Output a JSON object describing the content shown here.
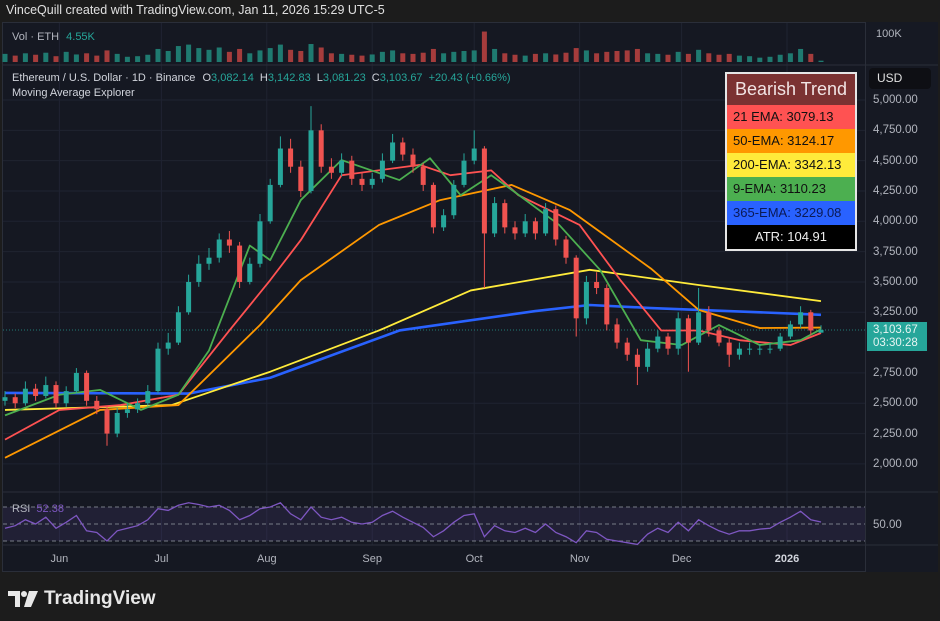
{
  "header": {
    "credit": "VinceQuill created with TradingView.com, Jan 11, 2026 15:29 UTC-5"
  },
  "volume_legend": {
    "label": "Vol · ETH",
    "value": "4.55K",
    "axis_label": "100K"
  },
  "symbol_legend": {
    "name": "Ethereum / U.S. Dollar · 1D · Binance",
    "o_label": "O",
    "o": "3,082.14",
    "h_label": "H",
    "h": "3,142.83",
    "l_label": "L",
    "l": "3,081.23",
    "c_label": "C",
    "c": "3,103.67",
    "change": "+20.43 (+0.66%)",
    "indicator": "Moving Average Explorer"
  },
  "currency_button": "USD",
  "price_tag": {
    "price": "3,103.67",
    "countdown": "03:30:28"
  },
  "trend_table": {
    "title": "Bearish Trend",
    "rows": [
      {
        "label": "21 EMA: 3079.13",
        "color": "#ff5252"
      },
      {
        "label": "50-EMA: 3124.17",
        "color": "#ff9800"
      },
      {
        "label": "200-EMA: 3342.13",
        "color": "#ffeb3b"
      },
      {
        "label": "9-EMA: 3110.23",
        "color": "#4caf50"
      },
      {
        "label": "365-EMA: 3229.08",
        "color": "#2962ff"
      },
      {
        "label": "ATR: 104.91",
        "color": "#000000"
      }
    ]
  },
  "rsi": {
    "label": "RSI",
    "value": "52.38",
    "axis_label": "50.00"
  },
  "logo": {
    "text": "TradingView"
  },
  "chart_data": {
    "type": "candlestick",
    "title": "Ethereum / U.S. Dollar · 1D · Binance",
    "ylim": [
      1850,
      5150
    ],
    "grid": true,
    "up_color": "#26a69a",
    "down_color": "#ef5350",
    "y_ticks": [
      "5,000.00",
      "4,750.00",
      "4,500.00",
      "4,250.00",
      "4,000.00",
      "3,750.00",
      "3,500.00",
      "3,250.00",
      "2,750.00",
      "2,500.00",
      "2,250.00",
      "2,000.00"
    ],
    "y_tick_values": [
      5000,
      4750,
      4500,
      4250,
      4000,
      3750,
      3500,
      3250,
      2750,
      2500,
      2250,
      2000
    ],
    "x_ticks": [
      {
        "label": "Jun",
        "date": "2025-06-01"
      },
      {
        "label": "Jul",
        "date": "2025-07-01"
      },
      {
        "label": "Aug",
        "date": "2025-08-01"
      },
      {
        "label": "Sep",
        "date": "2025-09-01"
      },
      {
        "label": "Oct",
        "date": "2025-10-01"
      },
      {
        "label": "Nov",
        "date": "2025-11-01"
      },
      {
        "label": "Dec",
        "date": "2025-12-01"
      },
      {
        "label": "2026",
        "date": "2026-01-01"
      }
    ],
    "candles_columns": [
      "date",
      "open",
      "high",
      "low",
      "close"
    ],
    "candles": [
      [
        "2025-05-16",
        2520,
        2600,
        2480,
        2550
      ],
      [
        "2025-05-19",
        2550,
        2580,
        2460,
        2500
      ],
      [
        "2025-05-22",
        2500,
        2680,
        2480,
        2620
      ],
      [
        "2025-05-25",
        2620,
        2660,
        2520,
        2560
      ],
      [
        "2025-05-28",
        2560,
        2720,
        2540,
        2650
      ],
      [
        "2025-05-31",
        2650,
        2680,
        2460,
        2500
      ],
      [
        "2025-06-03",
        2500,
        2640,
        2470,
        2600
      ],
      [
        "2025-06-06",
        2600,
        2790,
        2580,
        2750
      ],
      [
        "2025-06-09",
        2750,
        2770,
        2480,
        2520
      ],
      [
        "2025-06-12",
        2520,
        2560,
        2410,
        2450
      ],
      [
        "2025-06-15",
        2450,
        2480,
        2150,
        2250
      ],
      [
        "2025-06-18",
        2250,
        2460,
        2220,
        2420
      ],
      [
        "2025-06-21",
        2420,
        2500,
        2380,
        2450
      ],
      [
        "2025-06-24",
        2450,
        2540,
        2420,
        2500
      ],
      [
        "2025-06-27",
        2500,
        2650,
        2480,
        2600
      ],
      [
        "2025-06-30",
        2600,
        3000,
        2580,
        2950
      ],
      [
        "2025-07-03",
        2950,
        3080,
        2900,
        3000
      ],
      [
        "2025-07-06",
        3000,
        3300,
        2980,
        3250
      ],
      [
        "2025-07-09",
        3250,
        3560,
        3230,
        3500
      ],
      [
        "2025-07-12",
        3500,
        3720,
        3460,
        3650
      ],
      [
        "2025-07-15",
        3650,
        3780,
        3600,
        3700
      ],
      [
        "2025-07-18",
        3700,
        3900,
        3660,
        3850
      ],
      [
        "2025-07-21",
        3850,
        3920,
        3740,
        3800
      ],
      [
        "2025-07-24",
        3800,
        3830,
        3450,
        3500
      ],
      [
        "2025-07-27",
        3500,
        3700,
        3480,
        3650
      ],
      [
        "2025-07-30",
        3650,
        4060,
        3620,
        4000
      ],
      [
        "2025-08-02",
        4000,
        4350,
        3980,
        4300
      ],
      [
        "2025-08-05",
        4300,
        4700,
        4280,
        4600
      ],
      [
        "2025-08-08",
        4600,
        4680,
        4400,
        4450
      ],
      [
        "2025-08-11",
        4450,
        4500,
        4200,
        4250
      ],
      [
        "2025-08-14",
        4250,
        4950,
        4230,
        4750
      ],
      [
        "2025-08-17",
        4750,
        4800,
        4400,
        4450
      ],
      [
        "2025-08-20",
        4450,
        4520,
        4350,
        4400
      ],
      [
        "2025-08-23",
        4400,
        4560,
        4370,
        4500
      ],
      [
        "2025-08-26",
        4500,
        4540,
        4300,
        4350
      ],
      [
        "2025-08-29",
        4350,
        4400,
        4250,
        4300
      ],
      [
        "2025-09-01",
        4300,
        4400,
        4270,
        4350
      ],
      [
        "2025-09-04",
        4350,
        4560,
        4320,
        4500
      ],
      [
        "2025-09-07",
        4500,
        4720,
        4480,
        4650
      ],
      [
        "2025-09-10",
        4650,
        4690,
        4500,
        4550
      ],
      [
        "2025-09-13",
        4550,
        4600,
        4400,
        4450
      ],
      [
        "2025-09-16",
        4450,
        4480,
        4250,
        4300
      ],
      [
        "2025-09-19",
        4300,
        4320,
        3900,
        3950
      ],
      [
        "2025-09-22",
        3950,
        4100,
        3920,
        4050
      ],
      [
        "2025-09-25",
        4050,
        4340,
        4020,
        4300
      ],
      [
        "2025-09-28",
        4300,
        4560,
        4280,
        4500
      ],
      [
        "2025-10-01",
        4500,
        4750,
        4470,
        4600
      ],
      [
        "2025-10-04",
        4600,
        4620,
        3450,
        3900
      ],
      [
        "2025-10-07",
        3900,
        4200,
        3870,
        4150
      ],
      [
        "2025-10-10",
        4150,
        4180,
        3900,
        3950
      ],
      [
        "2025-10-13",
        3950,
        4000,
        3850,
        3900
      ],
      [
        "2025-10-16",
        3900,
        4060,
        3870,
        4000
      ],
      [
        "2025-10-19",
        4000,
        4030,
        3850,
        3900
      ],
      [
        "2025-10-22",
        3900,
        4150,
        3880,
        4100
      ],
      [
        "2025-10-25",
        4100,
        4130,
        3800,
        3850
      ],
      [
        "2025-10-28",
        3850,
        3880,
        3650,
        3700
      ],
      [
        "2025-10-31",
        3700,
        3720,
        3050,
        3200
      ],
      [
        "2025-11-03",
        3200,
        3550,
        3150,
        3500
      ],
      [
        "2025-11-06",
        3500,
        3580,
        3400,
        3450
      ],
      [
        "2025-11-09",
        3450,
        3480,
        3100,
        3150
      ],
      [
        "2025-11-12",
        3150,
        3200,
        2950,
        3000
      ],
      [
        "2025-11-15",
        3000,
        3040,
        2850,
        2900
      ],
      [
        "2025-11-18",
        2900,
        2950,
        2650,
        2800
      ],
      [
        "2025-11-21",
        2800,
        3000,
        2760,
        2950
      ],
      [
        "2025-11-24",
        2950,
        3100,
        2920,
        3050
      ],
      [
        "2025-11-27",
        3050,
        3080,
        2900,
        2950
      ],
      [
        "2025-11-30",
        2950,
        3250,
        2900,
        3200
      ],
      [
        "2025-12-03",
        3200,
        3230,
        2760,
        3000
      ],
      [
        "2025-12-06",
        3000,
        3450,
        2980,
        3250
      ],
      [
        "2025-12-09",
        3250,
        3300,
        3050,
        3100
      ],
      [
        "2025-12-12",
        3100,
        3130,
        2970,
        3000
      ],
      [
        "2025-12-15",
        3000,
        3040,
        2800,
        2900
      ],
      [
        "2025-12-18",
        2900,
        3000,
        2860,
        2950
      ],
      [
        "2025-12-21",
        2950,
        3000,
        2900,
        2950
      ],
      [
        "2025-12-24",
        2950,
        2990,
        2900,
        2950
      ],
      [
        "2025-12-27",
        2950,
        3000,
        2910,
        2950
      ],
      [
        "2025-12-30",
        2950,
        3080,
        2930,
        3050
      ],
      [
        "2026-01-02",
        3050,
        3180,
        3030,
        3150
      ],
      [
        "2026-01-05",
        3150,
        3300,
        3120,
        3250
      ],
      [
        "2026-01-08",
        3250,
        3270,
        3060,
        3100
      ],
      [
        "2026-01-11",
        3082.14,
        3142.83,
        3081.23,
        3103.67
      ]
    ],
    "volume_k": [
      28,
      22,
      30,
      25,
      32,
      20,
      35,
      26,
      30,
      22,
      40,
      28,
      18,
      20,
      25,
      45,
      38,
      55,
      60,
      48,
      42,
      50,
      35,
      45,
      30,
      40,
      48,
      60,
      42,
      38,
      62,
      50,
      30,
      28,
      25,
      22,
      26,
      35,
      40,
      30,
      28,
      32,
      45,
      30,
      35,
      38,
      40,
      105,
      45,
      30,
      25,
      22,
      28,
      30,
      26,
      32,
      48,
      40,
      30,
      35,
      38,
      40,
      45,
      30,
      28,
      25,
      35,
      28,
      42,
      30,
      25,
      28,
      22,
      20,
      15,
      18,
      25,
      30,
      45,
      28,
      4.55
    ],
    "rsi_values": [
      45,
      48,
      55,
      50,
      58,
      45,
      52,
      60,
      42,
      40,
      30,
      42,
      45,
      48,
      55,
      68,
      66,
      72,
      75,
      73,
      70,
      72,
      66,
      55,
      60,
      68,
      70,
      75,
      62,
      55,
      70,
      58,
      55,
      58,
      52,
      50,
      52,
      60,
      65,
      58,
      52,
      46,
      35,
      42,
      52,
      60,
      62,
      35,
      48,
      42,
      40,
      45,
      40,
      50,
      40,
      35,
      28,
      42,
      40,
      32,
      30,
      28,
      26,
      38,
      45,
      40,
      52,
      42,
      55,
      48,
      42,
      38,
      42,
      42,
      44,
      45,
      52,
      58,
      65,
      55,
      52.38
    ],
    "rsi_levels": [
      70,
      50,
      30
    ],
    "series": [
      {
        "name": "365-EMA",
        "color": "#2962ff",
        "points": [
          [
            "2025-05-16",
            2585
          ],
          [
            "2025-07-09",
            2580
          ],
          [
            "2025-08-02",
            2710
          ],
          [
            "2025-09-09",
            3100
          ],
          [
            "2025-10-19",
            3260
          ],
          [
            "2025-11-04",
            3310
          ],
          [
            "2025-11-22",
            3285
          ],
          [
            "2025-12-24",
            3250
          ],
          [
            "2026-01-11",
            3229.08
          ]
        ]
      },
      {
        "name": "200-EMA",
        "color": "#ffeb3b",
        "points": [
          [
            "2025-05-16",
            2445
          ],
          [
            "2025-07-04",
            2485
          ],
          [
            "2025-08-02",
            2760
          ],
          [
            "2025-09-03",
            3100
          ],
          [
            "2025-09-30",
            3430
          ],
          [
            "2025-11-04",
            3600
          ],
          [
            "2025-12-06",
            3475
          ],
          [
            "2026-01-11",
            3342.13
          ]
        ]
      },
      {
        "name": "50-EMA",
        "color": "#ff9800",
        "points": [
          [
            "2025-05-16",
            2050
          ],
          [
            "2025-06-13",
            2445
          ],
          [
            "2025-07-06",
            2485
          ],
          [
            "2025-07-30",
            3145
          ],
          [
            "2025-08-11",
            3515
          ],
          [
            "2025-09-03",
            3970
          ],
          [
            "2025-09-21",
            4175
          ],
          [
            "2025-10-12",
            4300
          ],
          [
            "2025-10-29",
            4095
          ],
          [
            "2025-11-22",
            3610
          ],
          [
            "2025-12-06",
            3270
          ],
          [
            "2025-12-24",
            3120
          ],
          [
            "2026-01-11",
            3124.17
          ]
        ]
      },
      {
        "name": "21 EMA",
        "color": "#ff5252",
        "points": [
          [
            "2025-05-16",
            2200
          ],
          [
            "2025-06-01",
            2445
          ],
          [
            "2025-06-19",
            2485
          ],
          [
            "2025-07-06",
            2570
          ],
          [
            "2025-07-21",
            3100
          ],
          [
            "2025-08-02",
            3515
          ],
          [
            "2025-08-11",
            3845
          ],
          [
            "2025-08-23",
            4380
          ],
          [
            "2025-09-15",
            4465
          ],
          [
            "2025-09-24",
            4380
          ],
          [
            "2025-10-06",
            4420
          ],
          [
            "2025-10-14",
            4215
          ],
          [
            "2025-11-01",
            3970
          ],
          [
            "2025-11-13",
            3515
          ],
          [
            "2025-11-25",
            3100
          ],
          [
            "2025-12-06",
            3100
          ],
          [
            "2025-12-18",
            3020
          ],
          [
            "2026-01-02",
            2980
          ],
          [
            "2026-01-11",
            3079.13
          ]
        ]
      },
      {
        "name": "9-EMA",
        "color": "#4caf50",
        "points": [
          [
            "2025-05-16",
            2400
          ],
          [
            "2025-06-01",
            2570
          ],
          [
            "2025-06-13",
            2610
          ],
          [
            "2025-06-25",
            2445
          ],
          [
            "2025-07-06",
            2570
          ],
          [
            "2025-07-15",
            2935
          ],
          [
            "2025-07-27",
            3800
          ],
          [
            "2025-08-02",
            3680
          ],
          [
            "2025-08-11",
            4175
          ],
          [
            "2025-08-23",
            4505
          ],
          [
            "2025-09-09",
            4340
          ],
          [
            "2025-09-18",
            4520
          ],
          [
            "2025-09-27",
            4215
          ],
          [
            "2025-10-06",
            4380
          ],
          [
            "2025-10-12",
            4260
          ],
          [
            "2025-10-26",
            3970
          ],
          [
            "2025-11-07",
            3600
          ],
          [
            "2025-11-19",
            3020
          ],
          [
            "2025-12-01",
            2980
          ],
          [
            "2025-12-12",
            3145
          ],
          [
            "2025-12-24",
            2980
          ],
          [
            "2026-01-05",
            3020
          ],
          [
            "2026-01-11",
            3110.23
          ]
        ]
      }
    ]
  }
}
